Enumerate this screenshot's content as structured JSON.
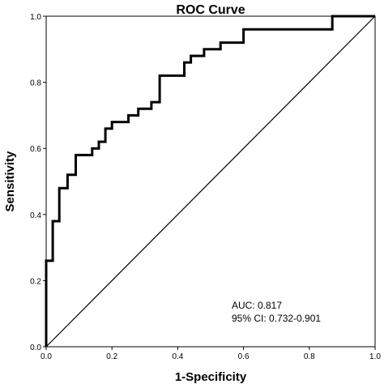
{
  "chart_data": {
    "type": "line",
    "title": "ROC Curve",
    "xlabel": "1-Specificity",
    "ylabel": "Sensitivity",
    "xlim": [
      0,
      1
    ],
    "ylim": [
      0,
      1
    ],
    "x_ticks": [
      "0.0",
      "0.2",
      "0.4",
      "0.6",
      "0.8",
      "1.0"
    ],
    "y_ticks": [
      "0.0",
      "0.2",
      "0.4",
      "0.6",
      "0.8",
      "1.0"
    ],
    "series": [
      {
        "type": "step",
        "color": "#000000",
        "points": [
          [
            0.0,
            0.0
          ],
          [
            0.0,
            0.26
          ],
          [
            0.02,
            0.26
          ],
          [
            0.02,
            0.38
          ],
          [
            0.04,
            0.38
          ],
          [
            0.04,
            0.48
          ],
          [
            0.065,
            0.48
          ],
          [
            0.065,
            0.52
          ],
          [
            0.09,
            0.52
          ],
          [
            0.09,
            0.58
          ],
          [
            0.14,
            0.58
          ],
          [
            0.14,
            0.6
          ],
          [
            0.16,
            0.6
          ],
          [
            0.16,
            0.62
          ],
          [
            0.18,
            0.62
          ],
          [
            0.18,
            0.66
          ],
          [
            0.2,
            0.66
          ],
          [
            0.2,
            0.68
          ],
          [
            0.25,
            0.68
          ],
          [
            0.25,
            0.7
          ],
          [
            0.28,
            0.7
          ],
          [
            0.28,
            0.72
          ],
          [
            0.32,
            0.72
          ],
          [
            0.32,
            0.74
          ],
          [
            0.345,
            0.74
          ],
          [
            0.345,
            0.82
          ],
          [
            0.42,
            0.82
          ],
          [
            0.42,
            0.86
          ],
          [
            0.44,
            0.86
          ],
          [
            0.44,
            0.88
          ],
          [
            0.48,
            0.88
          ],
          [
            0.48,
            0.9
          ],
          [
            0.53,
            0.9
          ],
          [
            0.53,
            0.92
          ],
          [
            0.6,
            0.92
          ],
          [
            0.6,
            0.96
          ],
          [
            0.87,
            0.96
          ],
          [
            0.87,
            1.0
          ],
          [
            1.0,
            1.0
          ]
        ]
      },
      {
        "type": "reference",
        "color": "#000000",
        "points": [
          [
            0,
            0
          ],
          [
            1,
            1
          ]
        ]
      }
    ],
    "annotations": [
      "AUC: 0.817",
      "95% CI: 0.732-0.901"
    ],
    "grid": false
  }
}
